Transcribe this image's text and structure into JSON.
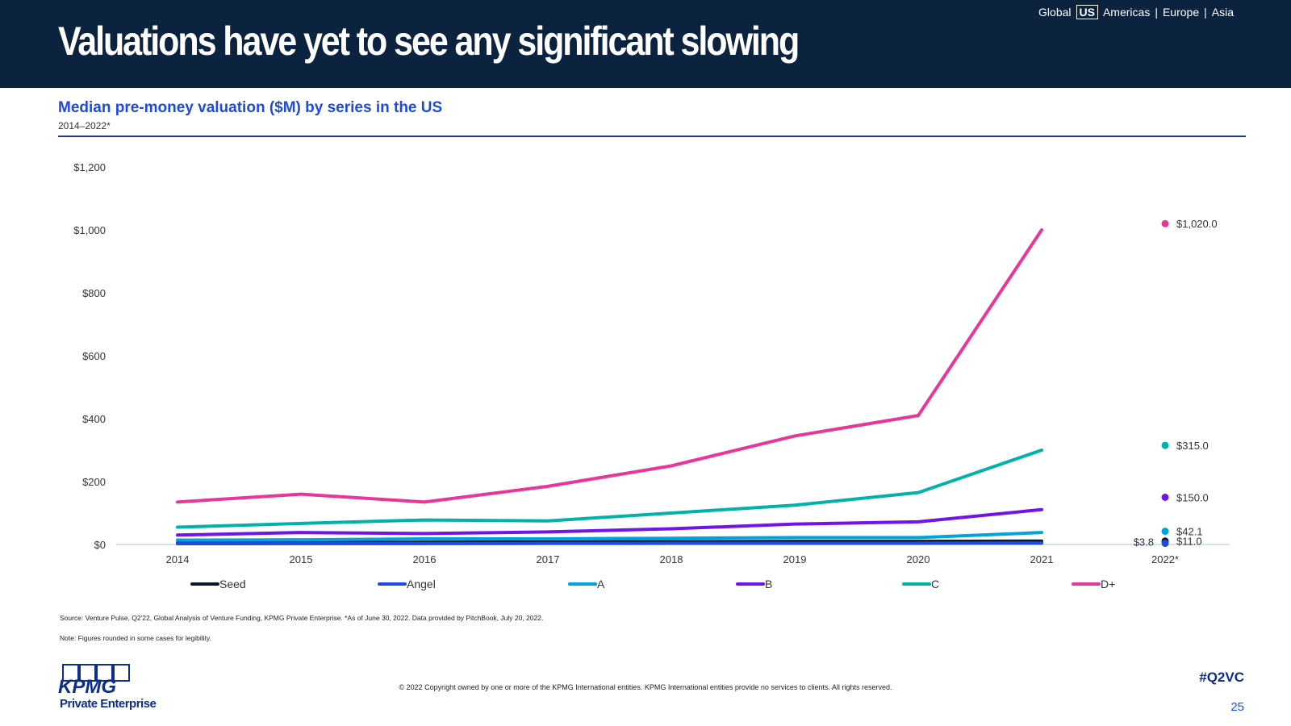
{
  "header": {
    "title": "Valuations have yet to see any significant slowing",
    "nav": [
      "Global",
      "US",
      "Americas",
      "|",
      "Europe",
      "|",
      "Asia"
    ],
    "nav_active": "US"
  },
  "chart_title": "Median pre-money valuation ($M) by series in the US",
  "chart_subtitle": "2014–2022*",
  "colors": {
    "header_bg": "#0c2340",
    "title_blue": "#1e49e2",
    "seed": "#0a1a2e",
    "angel": "#1e49e2",
    "a": "#00a3e0",
    "b": "#7213ea",
    "c": "#00b2a9",
    "d_plus": "#e8369a"
  },
  "chart_data": {
    "type": "line",
    "categories": [
      "2014",
      "2015",
      "2016",
      "2017",
      "2018",
      "2019",
      "2020",
      "2021",
      "2022*"
    ],
    "ylim": [
      0,
      1200
    ],
    "yticks": [
      "$0",
      "$200",
      "$400",
      "$600",
      "$800",
      "$1,000",
      "$1,200"
    ],
    "ytick_values": [
      0,
      200,
      400,
      600,
      800,
      1000,
      1200
    ],
    "grid": false,
    "legend_position": "bottom",
    "series": [
      {
        "name": "Seed",
        "color": "#0a1a2e",
        "values": [
          5,
          6,
          7,
          8,
          9,
          10,
          10,
          11,
          null
        ],
        "last_point": 11.0,
        "last_label": "$11.0"
      },
      {
        "name": "Angel",
        "color": "#1e49e2",
        "values": [
          2.5,
          3,
          3,
          3.5,
          3.8,
          4,
          4,
          4.5,
          null
        ],
        "last_point": 3.8,
        "last_label": "$3.8"
      },
      {
        "name": "A",
        "color": "#00a3e0",
        "values": [
          14,
          15,
          18,
          18,
          20,
          22,
          22,
          38,
          null
        ],
        "last_point": 42.1,
        "last_label": "$42.1"
      },
      {
        "name": "B",
        "color": "#7213ea",
        "values": [
          30,
          38,
          35,
          40,
          50,
          65,
          72,
          111,
          null
        ],
        "last_point": 150.0,
        "last_label": "$150.0"
      },
      {
        "name": "C",
        "color": "#00b2a9",
        "values": [
          55,
          67,
          78,
          75,
          100,
          125,
          165,
          300,
          null
        ],
        "last_point": 315.0,
        "last_label": "$315.0"
      },
      {
        "name": "D+",
        "color": "#e8369a",
        "values": [
          135,
          160,
          135,
          185,
          250,
          345,
          410,
          1000,
          null
        ],
        "last_point": 1020.0,
        "last_label": "$1,020.0"
      }
    ]
  },
  "source": "Source: Venture Pulse, Q2'22, Global Analysis of Venture Funding, KPMG Private Enterprise. *As of June 30, 2022. Data provided by PitchBook, July 20, 2022.",
  "note": "Note: Figures rounded in some cases for legibility.",
  "logo": {
    "wordmark": "KPMG",
    "subtext": "Private Enterprise"
  },
  "copyright": "© 2022 Copyright owned by one or more of the KPMG International entities. KPMG International entities provide no services to clients. All rights reserved.",
  "hashtag": "#Q2VC",
  "page_number": "25"
}
